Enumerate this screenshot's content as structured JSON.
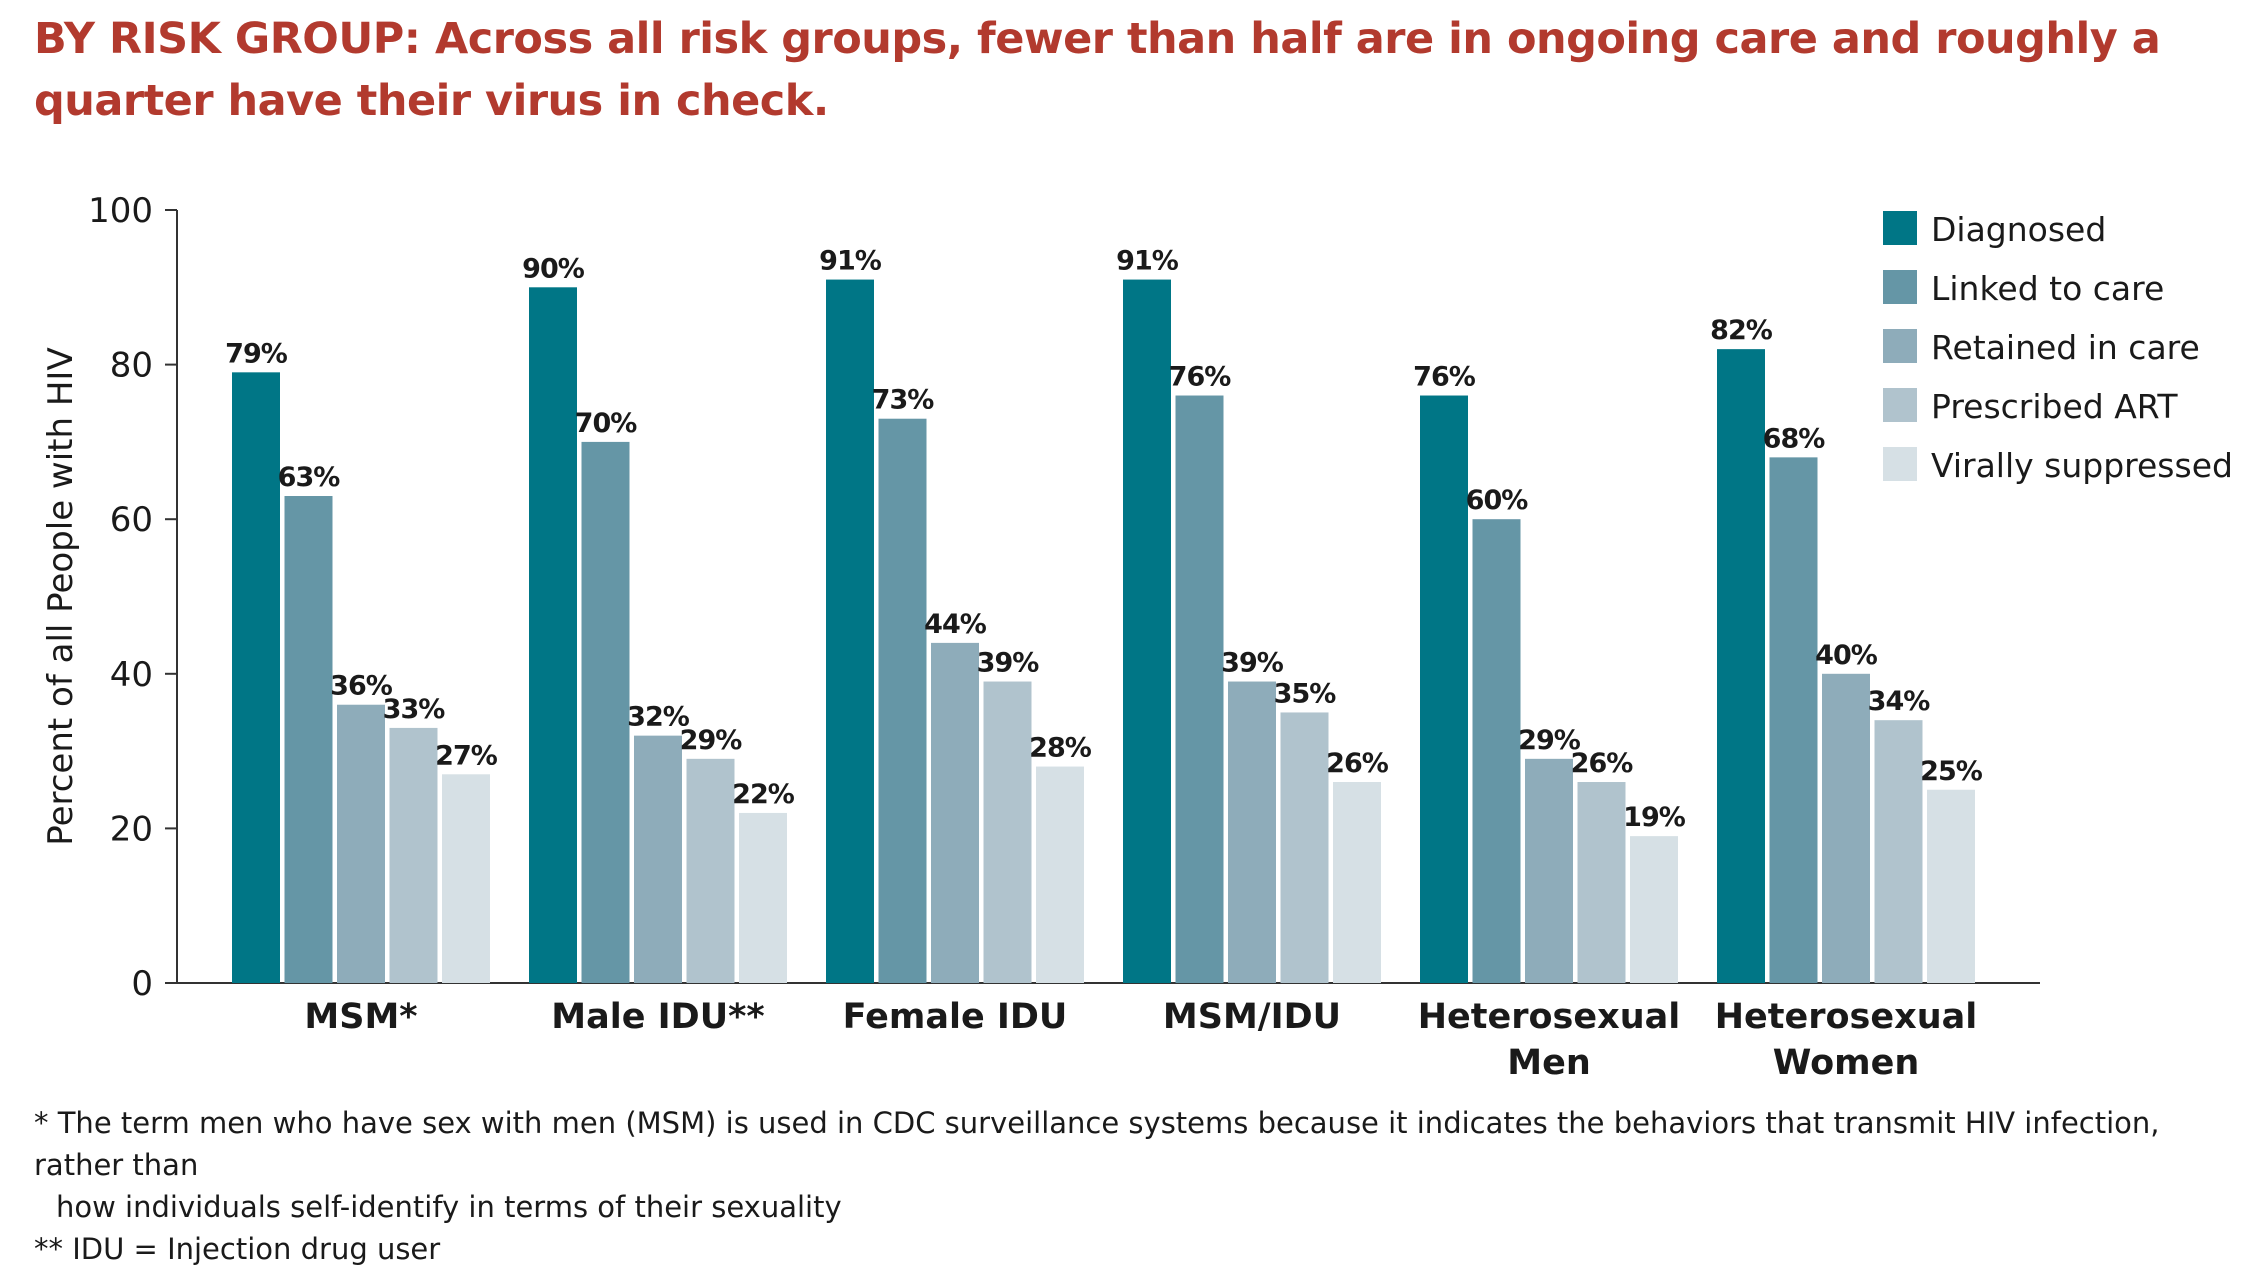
{
  "title": "BY RISK GROUP:  Across all risk groups, fewer than half are in ongoing care and roughly a quarter have their virus in check.",
  "footnotes": {
    "msm_line1": "* The term men who have sex with men (MSM) is used in CDC surveillance systems because it indicates the behaviors that transmit HIV infection, rather than",
    "msm_line2": "how individuals self-identify in terms of their sexuality",
    "idu": "** IDU = Injection drug user"
  },
  "chart_data": {
    "type": "bar",
    "ylabel": "Percent of all People with HIV",
    "xlabel": "",
    "ylim": [
      0,
      100
    ],
    "yticks": [
      0,
      20,
      40,
      60,
      80,
      100
    ],
    "grid": false,
    "legend_position": "top-right",
    "value_suffix": "%",
    "categories": [
      [
        "MSM*"
      ],
      [
        "Male IDU**"
      ],
      [
        "Female IDU"
      ],
      [
        "MSM/IDU"
      ],
      [
        "Heterosexual",
        "Men"
      ],
      [
        "Heterosexual",
        "Women"
      ]
    ],
    "series": [
      {
        "name": "Diagnosed",
        "color": "#007686",
        "values": [
          79,
          90,
          91,
          91,
          76,
          82
        ]
      },
      {
        "name": "Linked to care",
        "color": "#6596a6",
        "values": [
          63,
          70,
          73,
          76,
          60,
          68
        ]
      },
      {
        "name": "Retained in care",
        "color": "#8eacba",
        "values": [
          36,
          32,
          44,
          39,
          29,
          40
        ]
      },
      {
        "name": "Prescribed ART",
        "color": "#b0c3cd",
        "values": [
          33,
          29,
          39,
          35,
          26,
          34
        ]
      },
      {
        "name": "Virally suppressed",
        "color": "#d6e0e5",
        "values": [
          27,
          22,
          28,
          26,
          19,
          25
        ]
      }
    ]
  }
}
